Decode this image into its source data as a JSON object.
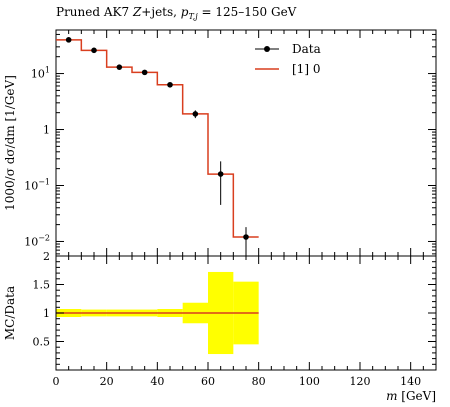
{
  "chart_data": [
    {
      "type": "line",
      "title_main": "Pruned AK7 ",
      "title_z": "Z",
      "title_jets": "+jets, ",
      "title_p": "p",
      "title_sub": "T,j",
      "title_range": " = 125–150 GeV",
      "ylabel": "1000/σ dσ/dm [1/GeV]",
      "xlim": [
        0,
        150
      ],
      "ylim": [
        0.0055,
        60
      ],
      "log_y": true,
      "grid": false,
      "legend": "top-right",
      "x_ticks": [
        0,
        20,
        40,
        60,
        80,
        100,
        120,
        140
      ],
      "y_ticks": [
        {
          "value": 10,
          "label": "10",
          "exp": "1"
        },
        {
          "value": 1,
          "label": "1",
          "exp": ""
        },
        {
          "value": 0.1,
          "label": "10",
          "exp": "−1"
        },
        {
          "value": 0.01,
          "label": "10",
          "exp": "−2"
        }
      ],
      "series": [
        {
          "name": "Data",
          "color": "#000000",
          "style": "points-with-errors",
          "x": [
            5,
            15,
            25,
            35,
            45,
            55,
            65,
            75
          ],
          "values": [
            40,
            26,
            13,
            10.5,
            6.3,
            1.9,
            0.16,
            0.012
          ],
          "err_low": [
            37,
            24.5,
            12.2,
            9.8,
            5.9,
            1.6,
            0.045,
            0.0056
          ],
          "err_high": [
            43,
            27.5,
            13.8,
            11.2,
            6.7,
            2.2,
            0.27,
            0.018
          ]
        },
        {
          "name": "[1] 0",
          "color": "#d93f1f",
          "style": "histogram",
          "bin_edges": [
            0,
            10,
            20,
            30,
            40,
            50,
            60,
            70,
            80
          ],
          "values": [
            40,
            26,
            13,
            10.5,
            6.3,
            1.9,
            0.16,
            0.012
          ]
        }
      ]
    },
    {
      "type": "area",
      "ylabel": "MC/Data",
      "xlabel_var": "m",
      "xlabel_unit": " [GeV]",
      "xlim": [
        0,
        150
      ],
      "ylim": [
        0,
        2
      ],
      "x_ticks": [
        0,
        20,
        40,
        60,
        80,
        100,
        120,
        140
      ],
      "y_ticks": [
        0.5,
        1,
        1.5,
        2
      ],
      "reference_line": 1,
      "band_color": "#ffff00",
      "ratio_color": "#d93f1f",
      "bin_edges": [
        0,
        10,
        20,
        30,
        40,
        50,
        60,
        70,
        80
      ],
      "ratio": [
        1,
        1,
        1,
        1,
        1,
        1,
        1,
        1
      ],
      "band_low": [
        0.93,
        0.94,
        0.94,
        0.94,
        0.93,
        0.82,
        0.28,
        0.45
      ],
      "band_high": [
        1.07,
        1.06,
        1.06,
        1.06,
        1.07,
        1.18,
        1.72,
        1.55
      ]
    }
  ]
}
